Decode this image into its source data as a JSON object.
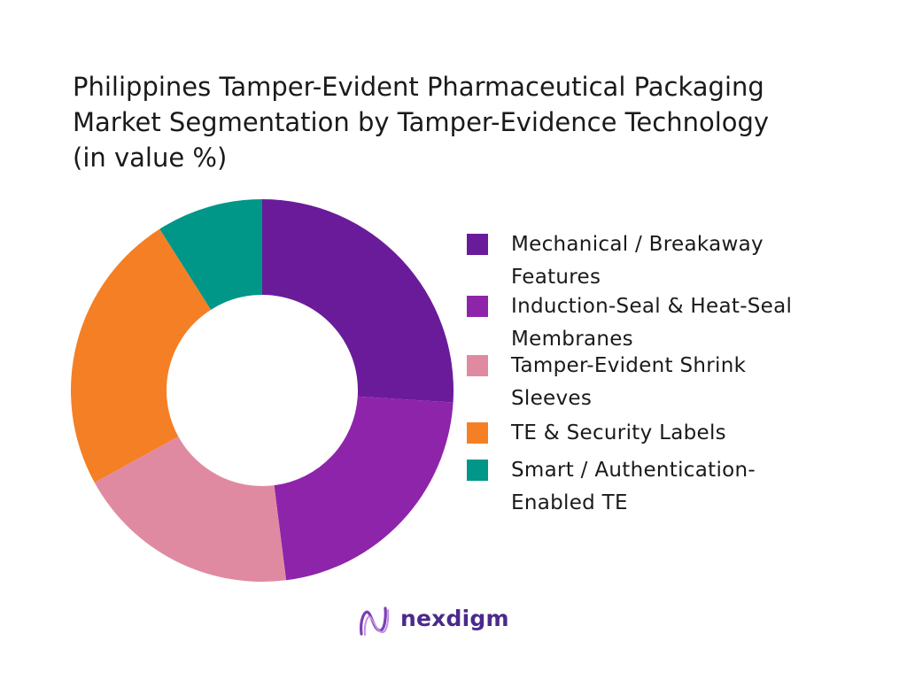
{
  "title_lines": [
    "Philippines Tamper-Evident Pharmaceutical Packaging",
    "Market Segmentation by Tamper-Evidence Technology",
    "(in value %)"
  ],
  "chart_data": {
    "type": "pie",
    "variant": "donut",
    "title": "Philippines Tamper-Evident Pharmaceutical Packaging Market Segmentation by Tamper-Evidence Technology (in value %)",
    "legend_position": "right",
    "categories": [
      "Mechanical / Breakaway Features",
      "Induction-Seal & Heat-Seal Membranes",
      "Tamper-Evident Shrink Sleeves",
      "TE & Security Labels",
      "Smart / Authentication-Enabled TE"
    ],
    "values": [
      26,
      22,
      19,
      24,
      9
    ],
    "colors": [
      "#6a1b9a",
      "#8e24aa",
      "#e08aa2",
      "#f57f25",
      "#009688"
    ]
  },
  "legend": [
    {
      "lines": [
        "Mechanical / Breakaway",
        "Features"
      ],
      "color": "#6a1b9a"
    },
    {
      "lines": [
        "Induction-Seal & Heat-Seal",
        "Membranes"
      ],
      "color": "#8e24aa"
    },
    {
      "lines": [
        "Tamper-Evident Shrink",
        "Sleeves"
      ],
      "color": "#e08aa2"
    },
    {
      "lines": [
        "TE & Security Labels"
      ],
      "color": "#f57f25"
    },
    {
      "lines": [
        "Smart / Authentication-",
        "Enabled TE"
      ],
      "color": "#009688"
    }
  ],
  "logo": {
    "text": "nexdigm",
    "icon": "nexdigm-logo-icon",
    "color": "#4a2a8c"
  }
}
